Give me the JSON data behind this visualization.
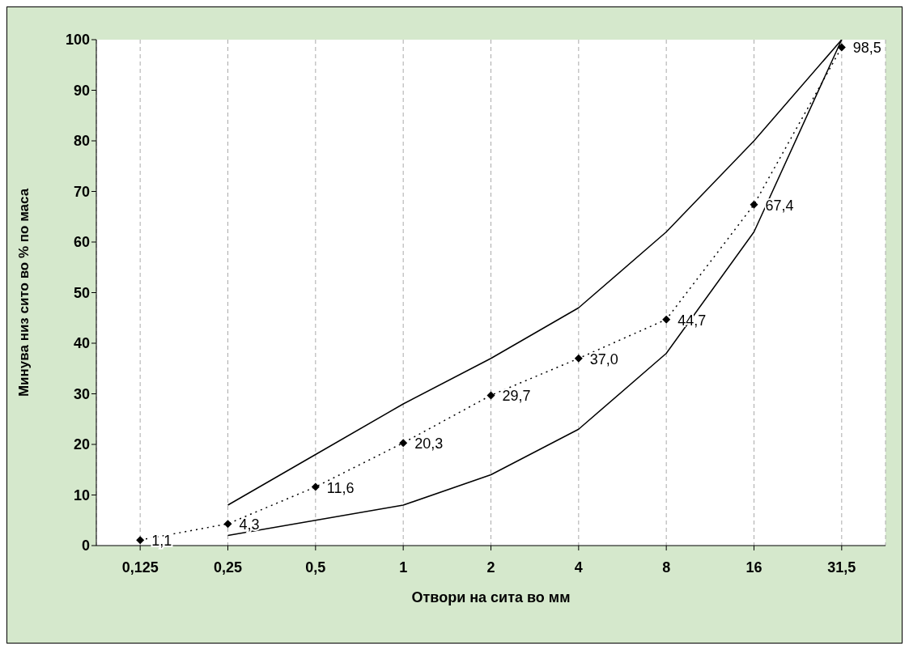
{
  "chart_data": {
    "type": "line",
    "xlabel": "Отвори на сита во мм",
    "ylabel": "Минува низ сито во % по маса",
    "categories": [
      "0,125",
      "0,25",
      "0,5",
      "1",
      "2",
      "4",
      "8",
      "16",
      "31,5"
    ],
    "series": [
      {
        "color": "#000000",
        "line_style": "solid",
        "marker": "none",
        "values": [
          null,
          8,
          18,
          28,
          37,
          47,
          62,
          80,
          100
        ]
      },
      {
        "color": "#000000",
        "line_style": "solid",
        "marker": "none",
        "values": [
          null,
          2,
          5,
          8,
          14,
          23,
          38,
          62,
          100
        ]
      },
      {
        "color": "#000000",
        "line_style": "dotted",
        "marker": "diamond",
        "values": [
          1.1,
          4.3,
          11.6,
          20.3,
          29.7,
          37.0,
          44.7,
          67.4,
          98.5
        ],
        "value_labels": [
          "1,1",
          "4,3",
          "11,6",
          "20,3",
          "29,7",
          "37,0",
          "44,7",
          "67,4",
          "98,5"
        ]
      }
    ],
    "ylim": [
      0,
      100
    ],
    "yticks": [
      0,
      10,
      20,
      30,
      40,
      50,
      60,
      70,
      80,
      90,
      100
    ],
    "grid": "x"
  }
}
